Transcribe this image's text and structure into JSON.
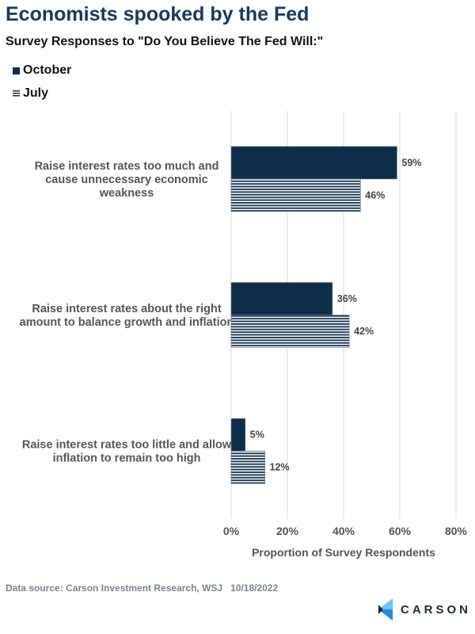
{
  "chart_data": {
    "type": "bar",
    "orientation": "horizontal",
    "title": "Economists spooked by the Fed",
    "subtitle": "Survey Responses to \"Do You Believe The Fed Will:\"",
    "categories": [
      [
        "Raise interest rates too much and",
        "cause unnecessary economic",
        "weakness"
      ],
      [
        "Raise interest rates about the right",
        "amount to balance growth and inflation"
      ],
      [
        "Raise interest rates too little and allow",
        "inflation to remain too high"
      ]
    ],
    "series": [
      {
        "name": "October",
        "values": [
          59,
          36,
          5
        ],
        "color": "#0e2f4b",
        "pattern": "solid"
      },
      {
        "name": "July",
        "values": [
          46,
          42,
          12
        ],
        "color": "#0e2f4b",
        "pattern": "horizontal-stripes"
      }
    ],
    "xlabel": "Proportion of Survey Respondents",
    "xlim": [
      0,
      80
    ],
    "xticks": [
      "0%",
      "20%",
      "40%",
      "60%",
      "80%"
    ],
    "value_suffix": "%",
    "grid": true,
    "legend_placement": "top-left"
  },
  "footer": {
    "source": "Data source: Carson Investment Research, WSJ   10/18/2022",
    "logo_text": "CARSON"
  }
}
